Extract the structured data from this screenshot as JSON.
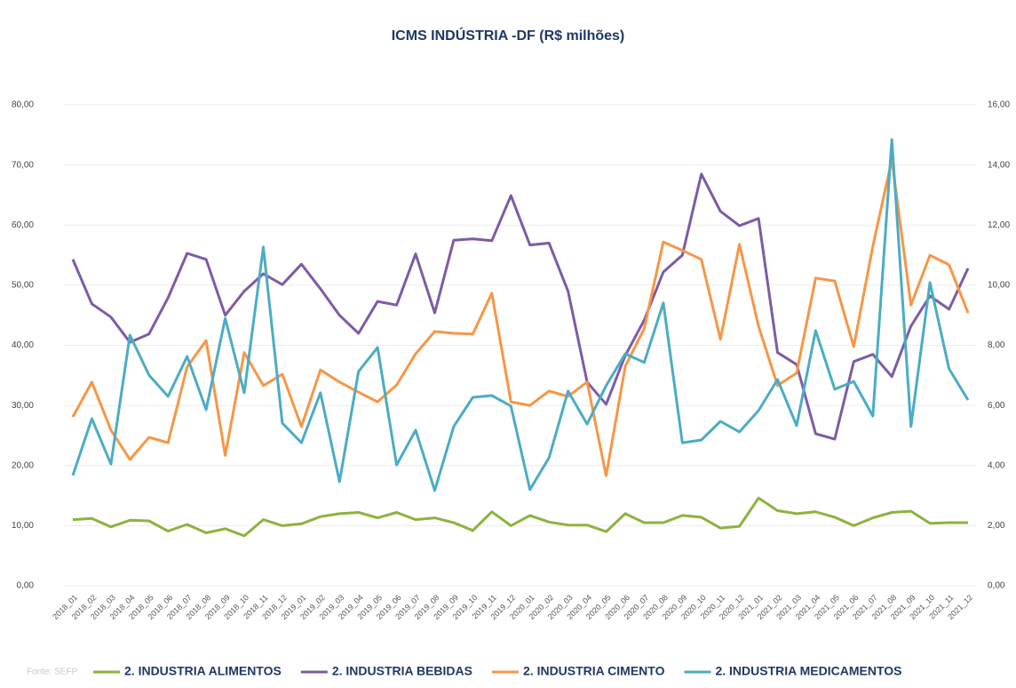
{
  "chart_data": {
    "type": "line",
    "title": "ICMS INDÚSTRIA  -DF (R$ milhões)",
    "source": "Fonte: SEFP",
    "categories": [
      "2018_01",
      "2018_02",
      "2018_03",
      "2018_04",
      "2018_05",
      "2018_06",
      "2018_07",
      "2018_08",
      "2018_09",
      "2018_10",
      "2018_11",
      "2018_12",
      "2019_01",
      "2019_02",
      "2019_03",
      "2019_04",
      "2019_05",
      "2019_06",
      "2019_07",
      "2019_08",
      "2019_09",
      "2019_10",
      "2019_11",
      "2019_12",
      "2020_01",
      "2020_02",
      "2020_03",
      "2020_04",
      "2020_05",
      "2020_06",
      "2020_07",
      "2020_08",
      "2020_09",
      "2020_10",
      "2020_11",
      "2020_12",
      "2021_01",
      "2021_02",
      "2021_03",
      "2021_04",
      "2021_05",
      "2021_06",
      "2021_07",
      "2021_08",
      "2021_09",
      "2021_10",
      "2021_11",
      "2021_12"
    ],
    "series": [
      {
        "name": "2. INDUSTRIA ALIMENTOS",
        "color": "#8cb33f",
        "values": [
          11,
          11.2,
          9.8,
          10.9,
          10.8,
          9.1,
          10.2,
          8.8,
          9.5,
          8.3,
          11,
          10,
          10.3,
          11.5,
          12,
          12.2,
          11.3,
          12.2,
          11,
          11.3,
          10.5,
          9.2,
          12.3,
          10,
          11.7,
          10.6,
          10.1,
          10.1,
          9,
          12,
          10.5,
          10.5,
          11.7,
          11.4,
          9.6,
          9.9,
          14.6,
          12.5,
          12,
          12.3,
          11.4,
          10,
          11.3,
          12.2,
          12.4,
          10.4,
          10.5,
          10.5
        ]
      },
      {
        "name": "2. INDUSTRIA BEBIDAS",
        "color": "#7d5ba6",
        "values": [
          54.3,
          46.9,
          44.7,
          40.5,
          41.9,
          47.9,
          55.3,
          54.3,
          45,
          49,
          51.9,
          50.1,
          53.5,
          49.4,
          45,
          42,
          47.3,
          46.7,
          55.2,
          45.4,
          57.5,
          57.7,
          57.4,
          64.9,
          56.7,
          57,
          49,
          33.9,
          30.2,
          38.3,
          44.2,
          52.2,
          55,
          68.5,
          62.3,
          59.9,
          61.1,
          38.8,
          36.8,
          25.3,
          24.4,
          37.3,
          38.5,
          34.8,
          43.2,
          48.2,
          46,
          52.8
        ]
      },
      {
        "name": "2. INDUSTRIA CIMENTO",
        "color": "#f79646",
        "values": [
          28.1,
          33.9,
          25.9,
          21,
          24.7,
          23.8,
          36.4,
          40.8,
          21.7,
          38.8,
          33.3,
          35.2,
          26.5,
          35.9,
          33.9,
          32.2,
          30.6,
          33.4,
          38.6,
          42.3,
          42,
          41.9,
          48.7,
          30.6,
          30,
          32.4,
          31.5,
          33.9,
          18.3,
          36.5,
          42.8,
          57.2,
          55.8,
          54.3,
          41,
          56.8,
          43.2,
          33.3,
          35.4,
          51.2,
          50.7,
          39.8,
          56.5,
          70.9,
          46.7,
          55,
          53.4,
          45.4
        ]
      },
      {
        "name": "2. INDUSTRIA MEDICAMENTOS",
        "color": "#4bacc6",
        "axis": "y2",
        "values": [
          3.67,
          5.56,
          4.05,
          8.34,
          7.01,
          6.3,
          7.63,
          5.86,
          8.9,
          6.42,
          11.27,
          5.41,
          4.76,
          6.42,
          3.46,
          7.13,
          7.93,
          4.02,
          5.18,
          3.17,
          5.3,
          6.27,
          6.33,
          5.98,
          3.2,
          4.26,
          6.48,
          5.38,
          6.66,
          7.72,
          7.43,
          9.41,
          4.76,
          4.85,
          5.47,
          5.12,
          5.83,
          6.86,
          5.33,
          8.49,
          6.54,
          6.8,
          5.65,
          14.85,
          5.3,
          10.09,
          7.22,
          6.18
        ]
      }
    ],
    "ylim": [
      0,
      80
    ],
    "yticks": [
      {
        "value": 0,
        "label": "0,00"
      },
      {
        "value": 10,
        "label": "10,00"
      },
      {
        "value": 20,
        "label": "20,00"
      },
      {
        "value": 30,
        "label": "30,00"
      },
      {
        "value": 40,
        "label": "40,00"
      },
      {
        "value": 50,
        "label": "50,00"
      },
      {
        "value": 60,
        "label": "60,00"
      },
      {
        "value": 70,
        "label": "70,00"
      },
      {
        "value": 80,
        "label": "80,00"
      }
    ],
    "y2lim": [
      0,
      16
    ],
    "y2ticks": [
      {
        "value": 0,
        "label": "0,00"
      },
      {
        "value": 2,
        "label": "2,00"
      },
      {
        "value": 4,
        "label": "4,00"
      },
      {
        "value": 6,
        "label": "6,00"
      },
      {
        "value": 8,
        "label": "8,00"
      },
      {
        "value": 10,
        "label": "10,00"
      },
      {
        "value": 12,
        "label": "12,00"
      },
      {
        "value": 14,
        "label": "14,00"
      },
      {
        "value": 16,
        "label": "16,00"
      }
    ],
    "grid": true,
    "legend": "bottom"
  }
}
